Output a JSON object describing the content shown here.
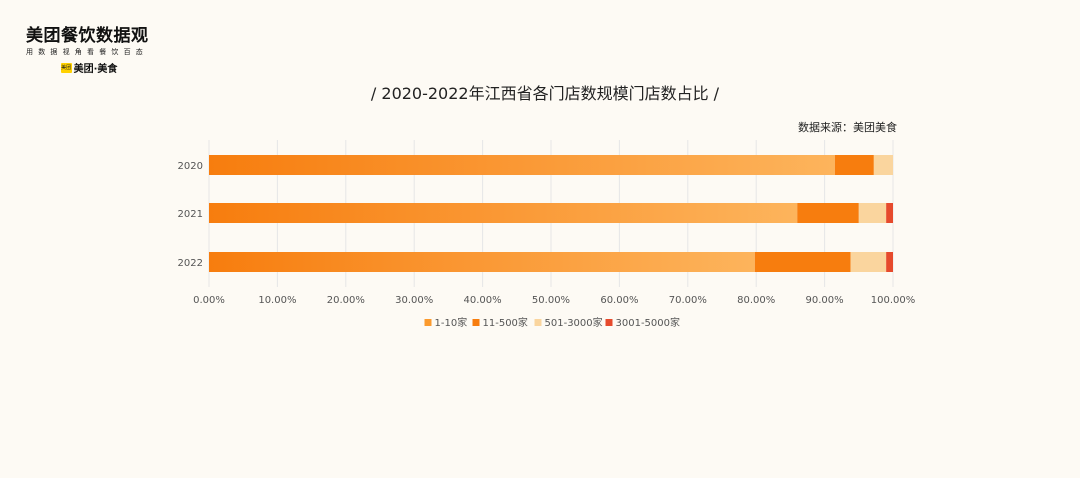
{
  "header": {
    "logo_title": "美团餐饮数据观",
    "logo_tagline": "用数据视角看餐饮百态",
    "brand_badge": "美团",
    "brand_name": "美团·美食"
  },
  "source_text": "数据来源：美团美食",
  "colors": {
    "background": "#fdfaf4",
    "series": [
      "#fb9a2e",
      "#f77d0e",
      "#fad59e",
      "#e64a2c"
    ],
    "grid": "#e6e6e6"
  },
  "chart_data": {
    "type": "bar",
    "orientation": "horizontal",
    "stacked": true,
    "title": "/  2020-2022年江西省各门店数规模门店数占比 /",
    "categories": [
      "2020",
      "2021",
      "2022"
    ],
    "series": [
      {
        "name": "1-10家",
        "values": [
          91.5,
          86.0,
          79.8
        ]
      },
      {
        "name": "11-500家",
        "values": [
          5.7,
          9.0,
          14.0
        ]
      },
      {
        "name": "501-3000家",
        "values": [
          2.8,
          4.0,
          5.2
        ]
      },
      {
        "name": "3001-5000家",
        "values": [
          0.0,
          1.0,
          1.0
        ]
      }
    ],
    "xlim": [
      0,
      100
    ],
    "xticks": [
      "0.00%",
      "10.00%",
      "20.00%",
      "30.00%",
      "40.00%",
      "50.00%",
      "60.00%",
      "70.00%",
      "80.00%",
      "90.00%",
      "100.00%"
    ],
    "grid": true,
    "legend_position": "bottom"
  }
}
